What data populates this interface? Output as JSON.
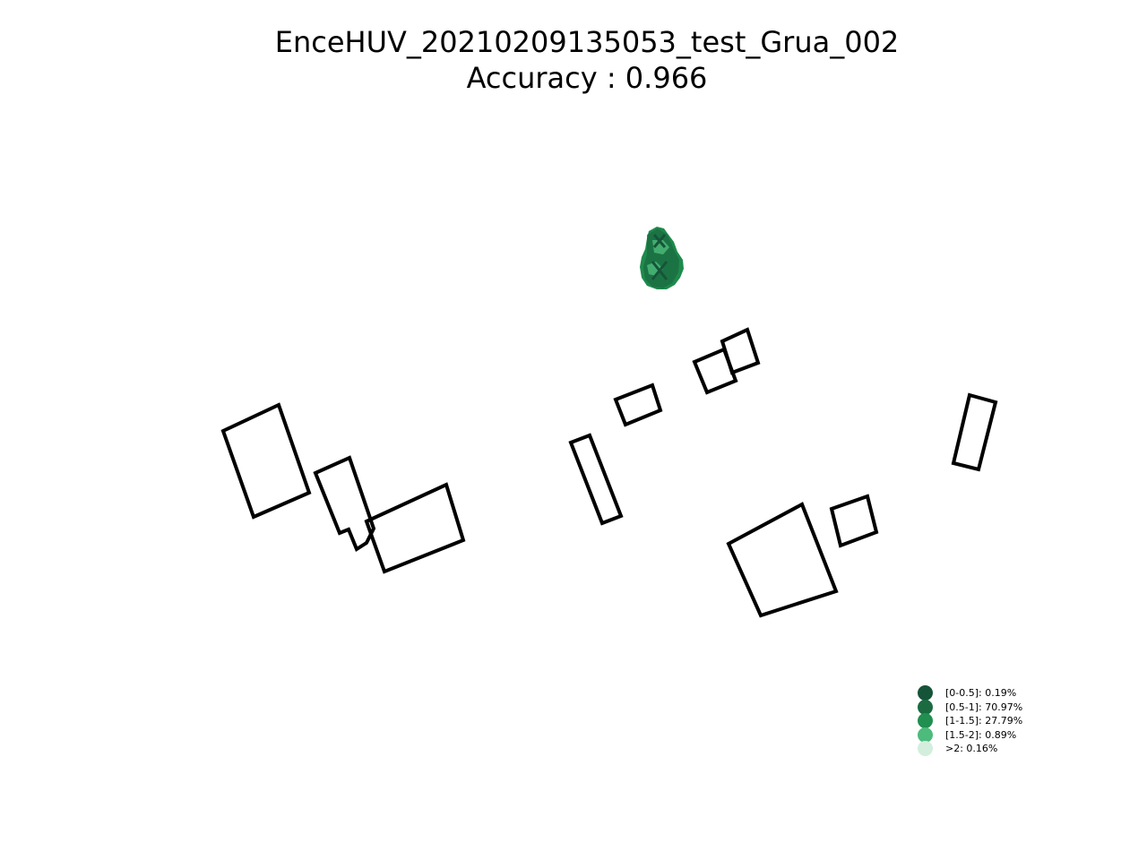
{
  "chart_data": {
    "type": "map",
    "title": "EnceHUV_20210209135053_test_Grua_002",
    "subtitle": "Accuracy : 0.966",
    "legend": [
      {
        "label": "[0-0.5]: 0.19%",
        "range": "[0-0.5]",
        "percent": 0.19,
        "color": "#16543a"
      },
      {
        "label": "[0.5-1]: 70.97%",
        "range": "[0.5-1]",
        "percent": 70.97,
        "color": "#1b6b40"
      },
      {
        "label": "[1-1.5]: 27.79%",
        "range": "[1-1.5]",
        "percent": 27.79,
        "color": "#208f4f"
      },
      {
        "label": "[1.5-2]: 0.89%",
        "range": "[1.5-2]",
        "percent": 0.89,
        "color": "#4dbb7c"
      },
      {
        "label": ">2: 0.16%",
        "range": ">2",
        "percent": 0.16,
        "color": "#d3eedd"
      }
    ],
    "legend_placement": "lower-right",
    "grid": false,
    "axes_visible": false
  }
}
